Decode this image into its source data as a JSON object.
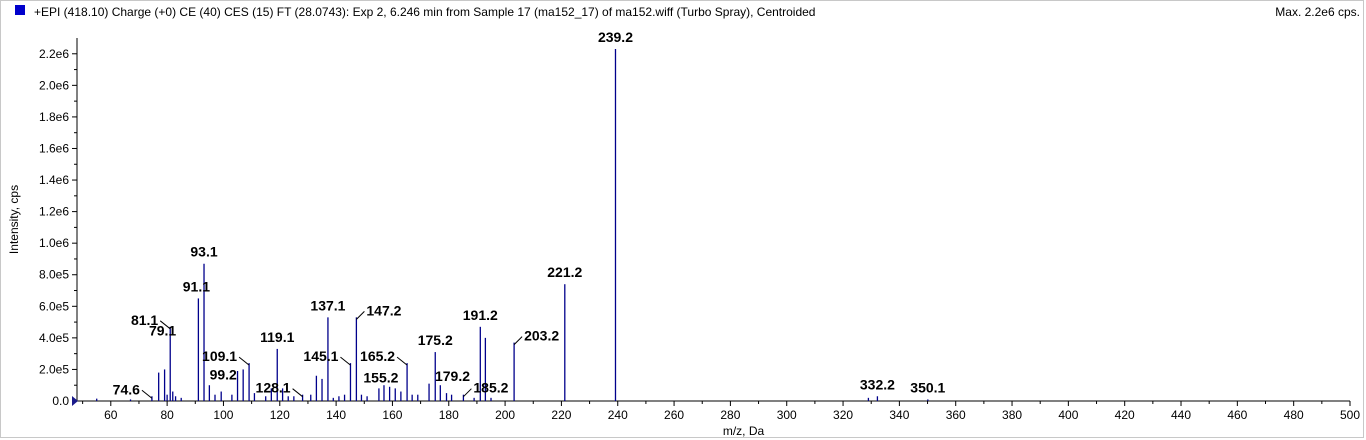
{
  "header": {
    "title": "+EPI (418.10) Charge (+0) CE (40) CES (15) FT (28.0743): Exp 2, 6.246 min from Sample 17 (ma152_17) of ma152.wiff (Turbo Spray), Centroided",
    "max_label": "Max. 2.2e6 cps."
  },
  "colors": {
    "series": "#00008b",
    "swatch": "#0000cc",
    "axis": "#000000",
    "leader": "#000000"
  },
  "chart_data": {
    "type": "bar",
    "xlabel": "m/z, Da",
    "ylabel": "Intensity, cps",
    "xlim": [
      48,
      500
    ],
    "ylim": [
      0,
      2300000.0
    ],
    "grid": false,
    "x_ticks": [
      60,
      80,
      100,
      120,
      140,
      160,
      180,
      200,
      220,
      240,
      260,
      280,
      300,
      320,
      340,
      360,
      380,
      400,
      420,
      440,
      460,
      480,
      500
    ],
    "y_ticks": [
      {
        "value": 0,
        "label": "0.0"
      },
      {
        "value": 200000,
        "label": "2.0e5"
      },
      {
        "value": 400000,
        "label": "4.0e5"
      },
      {
        "value": 600000,
        "label": "6.0e5"
      },
      {
        "value": 800000,
        "label": "8.0e5"
      },
      {
        "value": 1000000,
        "label": "1.0e6"
      },
      {
        "value": 1200000,
        "label": "1.2e6"
      },
      {
        "value": 1400000,
        "label": "1.4e6"
      },
      {
        "value": 1600000,
        "label": "1.6e6"
      },
      {
        "value": 1800000,
        "label": "1.8e6"
      },
      {
        "value": 2000000,
        "label": "2.0e6"
      },
      {
        "value": 2200000,
        "label": "2.2e6"
      }
    ],
    "peaks": [
      {
        "mz": 55.0,
        "intensity": 15000
      },
      {
        "mz": 67.0,
        "intensity": 10000
      },
      {
        "mz": 74.6,
        "intensity": 30000
      },
      {
        "mz": 77.0,
        "intensity": 180000
      },
      {
        "mz": 79.1,
        "intensity": 200000
      },
      {
        "mz": 80.0,
        "intensity": 40000
      },
      {
        "mz": 81.1,
        "intensity": 470000
      },
      {
        "mz": 82.0,
        "intensity": 60000
      },
      {
        "mz": 83.0,
        "intensity": 30000
      },
      {
        "mz": 85.0,
        "intensity": 20000
      },
      {
        "mz": 91.1,
        "intensity": 650000
      },
      {
        "mz": 93.1,
        "intensity": 870000
      },
      {
        "mz": 95.0,
        "intensity": 100000
      },
      {
        "mz": 97.0,
        "intensity": 40000
      },
      {
        "mz": 99.2,
        "intensity": 60000
      },
      {
        "mz": 103.0,
        "intensity": 40000
      },
      {
        "mz": 105.0,
        "intensity": 190000
      },
      {
        "mz": 107.0,
        "intensity": 200000
      },
      {
        "mz": 109.1,
        "intensity": 240000
      },
      {
        "mz": 111.0,
        "intensity": 50000
      },
      {
        "mz": 115.0,
        "intensity": 30000
      },
      {
        "mz": 117.0,
        "intensity": 80000
      },
      {
        "mz": 119.1,
        "intensity": 330000
      },
      {
        "mz": 121.0,
        "intensity": 80000
      },
      {
        "mz": 123.0,
        "intensity": 30000
      },
      {
        "mz": 125.0,
        "intensity": 30000
      },
      {
        "mz": 128.1,
        "intensity": 40000
      },
      {
        "mz": 131.0,
        "intensity": 40000
      },
      {
        "mz": 133.0,
        "intensity": 160000
      },
      {
        "mz": 135.0,
        "intensity": 140000
      },
      {
        "mz": 137.1,
        "intensity": 530000
      },
      {
        "mz": 139.0,
        "intensity": 20000
      },
      {
        "mz": 141.0,
        "intensity": 30000
      },
      {
        "mz": 143.0,
        "intensity": 40000
      },
      {
        "mz": 145.1,
        "intensity": 240000
      },
      {
        "mz": 147.2,
        "intensity": 530000
      },
      {
        "mz": 149.0,
        "intensity": 40000
      },
      {
        "mz": 151.0,
        "intensity": 30000
      },
      {
        "mz": 155.2,
        "intensity": 80000
      },
      {
        "mz": 157.0,
        "intensity": 100000
      },
      {
        "mz": 159.0,
        "intensity": 90000
      },
      {
        "mz": 161.0,
        "intensity": 80000
      },
      {
        "mz": 163.0,
        "intensity": 60000
      },
      {
        "mz": 165.2,
        "intensity": 240000
      },
      {
        "mz": 167.0,
        "intensity": 40000
      },
      {
        "mz": 169.0,
        "intensity": 40000
      },
      {
        "mz": 173.0,
        "intensity": 110000
      },
      {
        "mz": 175.2,
        "intensity": 310000
      },
      {
        "mz": 177.0,
        "intensity": 100000
      },
      {
        "mz": 179.2,
        "intensity": 50000
      },
      {
        "mz": 181.0,
        "intensity": 40000
      },
      {
        "mz": 185.2,
        "intensity": 40000
      },
      {
        "mz": 189.0,
        "intensity": 20000
      },
      {
        "mz": 191.2,
        "intensity": 470000
      },
      {
        "mz": 193.0,
        "intensity": 400000
      },
      {
        "mz": 195.0,
        "intensity": 20000
      },
      {
        "mz": 203.2,
        "intensity": 370000
      },
      {
        "mz": 221.2,
        "intensity": 740000
      },
      {
        "mz": 239.2,
        "intensity": 2230000
      },
      {
        "mz": 332.2,
        "intensity": 30000
      },
      {
        "mz": 329.0,
        "intensity": 20000
      },
      {
        "mz": 350.1,
        "intensity": 10000
      }
    ],
    "annotations": [
      {
        "text": "239.2",
        "mz": 239.2,
        "intensity": 2230000,
        "leader": false
      },
      {
        "text": "93.1",
        "mz": 93.1,
        "intensity": 870000,
        "leader": false
      },
      {
        "text": "221.2",
        "mz": 221.2,
        "intensity": 740000,
        "leader": false
      },
      {
        "text": "91.1",
        "mz": 91.1,
        "intensity": 650000,
        "leader": false
      },
      {
        "text": "81.1",
        "mz": 81.1,
        "intensity": 470000,
        "leader": true,
        "side": "left"
      },
      {
        "text": "137.1",
        "mz": 137.1,
        "intensity": 530000,
        "leader": false
      },
      {
        "text": "147.2",
        "mz": 147.2,
        "intensity": 530000,
        "leader": true,
        "side": "right"
      },
      {
        "text": "191.2",
        "mz": 191.2,
        "intensity": 470000,
        "leader": false
      },
      {
        "text": "203.2",
        "mz": 203.2,
        "intensity": 370000,
        "leader": true,
        "side": "right"
      },
      {
        "text": "79.1",
        "mz": 79.1,
        "intensity": 200000,
        "leader": false
      },
      {
        "text": "119.1",
        "mz": 119.1,
        "intensity": 330000,
        "leader": false
      },
      {
        "text": "175.2",
        "mz": 175.2,
        "intensity": 310000,
        "leader": false
      },
      {
        "text": "109.1",
        "mz": 109.1,
        "intensity": 240000,
        "leader": true,
        "side": "left"
      },
      {
        "text": "145.1",
        "mz": 145.1,
        "intensity": 240000,
        "leader": true,
        "side": "left"
      },
      {
        "text": "165.2",
        "mz": 165.2,
        "intensity": 240000,
        "leader": true,
        "side": "left"
      },
      {
        "text": "179.2",
        "mz": 179.2,
        "intensity": 50000,
        "leader": false
      },
      {
        "text": "155.2",
        "mz": 155.2,
        "intensity": 80000,
        "leader": false
      },
      {
        "text": "99.2",
        "mz": 99.2,
        "intensity": 60000,
        "leader": false
      },
      {
        "text": "128.1",
        "mz": 128.1,
        "intensity": 40000,
        "leader": true,
        "side": "left"
      },
      {
        "text": "185.2",
        "mz": 185.2,
        "intensity": 40000,
        "leader": true,
        "side": "right"
      },
      {
        "text": "74.6",
        "mz": 74.6,
        "intensity": 30000,
        "leader": true,
        "side": "left"
      },
      {
        "text": "332.2",
        "mz": 332.2,
        "intensity": 30000,
        "leader": false
      },
      {
        "text": "350.1",
        "mz": 350.1,
        "intensity": 10000,
        "leader": false
      }
    ]
  }
}
